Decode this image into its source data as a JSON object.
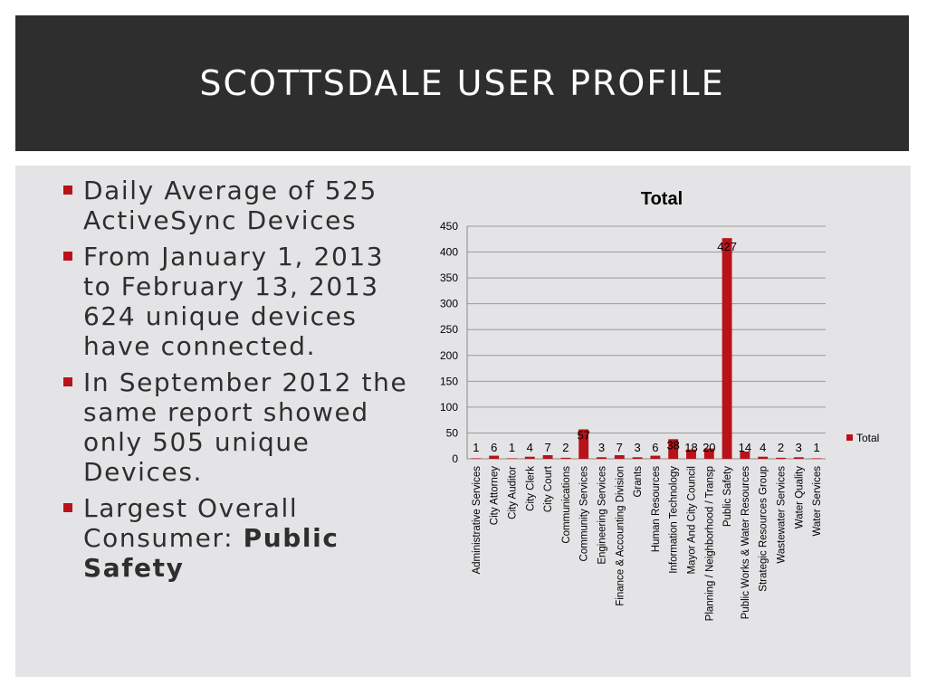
{
  "slide": {
    "title": "SCOTTSDALE USER PROFILE",
    "bullets": [
      {
        "text": "Daily Average of 525 ActiveSync Devices"
      },
      {
        "text": "From January 1, 2013 to February 13, 2013 624 unique devices have connected."
      },
      {
        "text": "In September 2012 the same report showed only 505 unique Devices."
      },
      {
        "text": "Largest Overall Consumer: ",
        "strong": "Public Safety"
      }
    ]
  },
  "colors": {
    "header_bg": "#2e2e2e",
    "content_bg": "#e4e4e6",
    "accent": "#b8121a",
    "text": "#2e2e2e"
  },
  "chart_data": {
    "type": "bar",
    "title": "Total",
    "xlabel": "",
    "ylabel": "",
    "ylim": [
      0,
      450
    ],
    "yticks": [
      0,
      50,
      100,
      150,
      200,
      250,
      300,
      350,
      400,
      450
    ],
    "grid": true,
    "legend": "right",
    "categories": [
      "Administrative Services",
      "City Attorney",
      "City Auditor",
      "City Clerk",
      "City Court",
      "Communications",
      "Community Services",
      "Engineering Services",
      "Finance & Accounting Division",
      "Grants",
      "Human Resources",
      "Information Technology",
      "Mayor And City Council",
      "Planning / Neighborhood / Transp",
      "Public Safety",
      "Public Works & Water Resources",
      "Strategic Resources Group",
      "Wastewater Services",
      "Water Quality",
      "Water Services"
    ],
    "series": [
      {
        "name": "Total",
        "color": "#b8121a",
        "values": [
          1,
          6,
          1,
          4,
          7,
          2,
          57,
          3,
          7,
          3,
          6,
          38,
          18,
          20,
          427,
          14,
          4,
          2,
          3,
          1
        ]
      }
    ]
  }
}
